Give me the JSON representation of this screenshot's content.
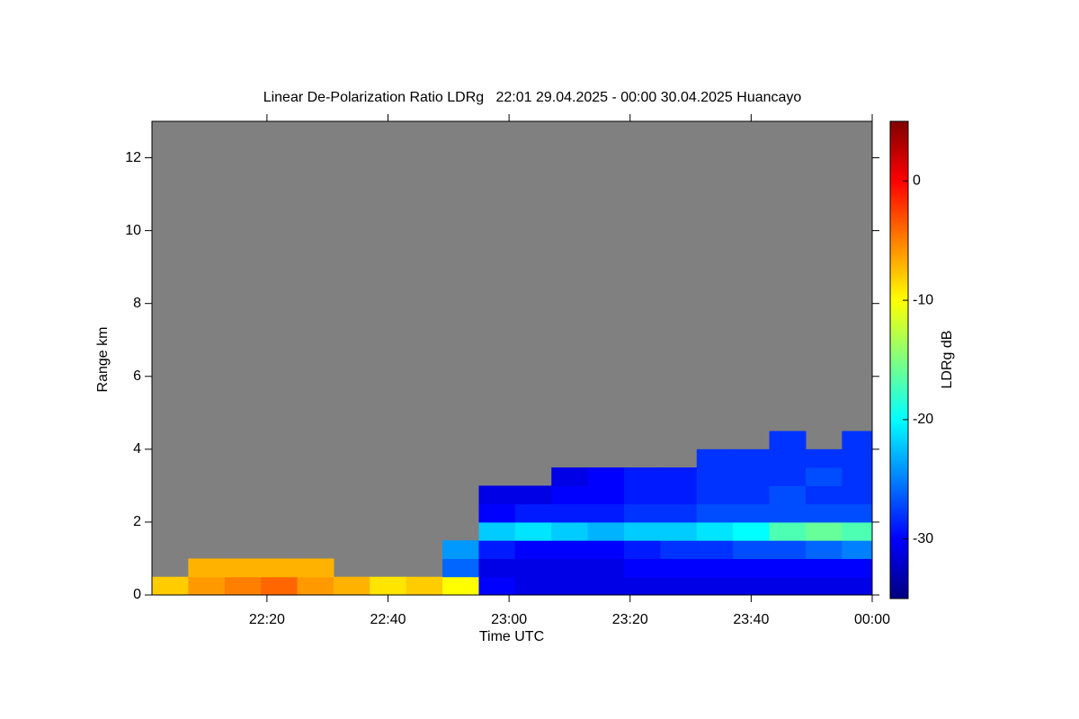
{
  "chart_data": {
    "type": "heatmap",
    "title": "Linear De-Polarization Ratio LDRg   22:01 29.04.2025 - 00:00 30.04.2025 Huancayo",
    "xlabel": "Time UTC",
    "ylabel": "Range km",
    "colorbar_label": "LDRg dB",
    "xlim": [
      1,
      120
    ],
    "xticks": [
      {
        "value": 20,
        "label": "22:20"
      },
      {
        "value": 40,
        "label": "22:40"
      },
      {
        "value": 60,
        "label": "23:00"
      },
      {
        "value": 80,
        "label": "23:20"
      },
      {
        "value": 100,
        "label": "23:40"
      },
      {
        "value": 120,
        "label": "00:00"
      }
    ],
    "ylim": [
      0,
      13
    ],
    "yticks": [
      0,
      2,
      4,
      6,
      8,
      10,
      12
    ],
    "clim": [
      -35,
      5
    ],
    "cticks": [
      0,
      -10,
      -20,
      -30
    ],
    "colormap": "jet",
    "nodata_color": "#808080",
    "x_edges": [
      1,
      7,
      13,
      19,
      25,
      31,
      37,
      43,
      49,
      55,
      61,
      67,
      73,
      79,
      85,
      91,
      97,
      103,
      109,
      115,
      120
    ],
    "y_edges": [
      0,
      0.5,
      1,
      1.5,
      2,
      2.5,
      3,
      3.5,
      4,
      4.5,
      5
    ],
    "z": [
      [
        -8,
        -6,
        -5,
        -4,
        -6,
        -7,
        -9,
        -8,
        -10,
        -30,
        -31,
        -31,
        -31,
        -31,
        -31,
        -31,
        -31,
        -31,
        -31,
        -31
      ],
      [
        null,
        -7,
        -7,
        -7,
        -7,
        null,
        null,
        null,
        -26,
        -31,
        -31,
        -31,
        -31,
        -30,
        -30,
        -30,
        -30,
        -30,
        -30,
        -30
      ],
      [
        null,
        null,
        null,
        null,
        null,
        null,
        null,
        null,
        -24,
        -29,
        -30,
        -30,
        -30,
        -29,
        -28,
        -28,
        -27,
        -27,
        -26,
        -25
      ],
      [
        null,
        null,
        null,
        null,
        null,
        null,
        null,
        null,
        null,
        -22,
        -21,
        -22,
        -23,
        -22,
        -22,
        -21,
        -20,
        -17,
        -16,
        -17
      ],
      [
        null,
        null,
        null,
        null,
        null,
        null,
        null,
        null,
        null,
        -30,
        -29,
        -29,
        -29,
        -28,
        -28,
        -27,
        -27,
        -27,
        -27,
        -27
      ],
      [
        null,
        null,
        null,
        null,
        null,
        null,
        null,
        null,
        null,
        -31,
        -31,
        -30,
        -30,
        -29,
        -29,
        -28,
        -28,
        -27,
        -28,
        -28
      ],
      [
        null,
        null,
        null,
        null,
        null,
        null,
        null,
        null,
        null,
        null,
        null,
        -31,
        -30,
        -29,
        -29,
        -28,
        -28,
        -28,
        -27,
        -28
      ],
      [
        null,
        null,
        null,
        null,
        null,
        null,
        null,
        null,
        null,
        null,
        null,
        null,
        null,
        null,
        null,
        -28,
        -28,
        -28,
        -28,
        -28
      ],
      [
        null,
        null,
        null,
        null,
        null,
        null,
        null,
        null,
        null,
        null,
        null,
        null,
        null,
        null,
        null,
        null,
        null,
        -28,
        null,
        -28
      ],
      [
        null,
        null,
        null,
        null,
        null,
        null,
        null,
        null,
        null,
        null,
        null,
        null,
        null,
        null,
        null,
        null,
        null,
        null,
        null,
        null
      ]
    ]
  }
}
